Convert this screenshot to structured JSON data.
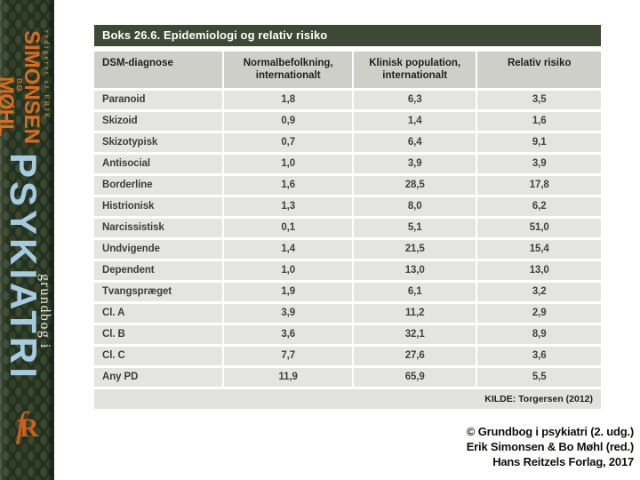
{
  "spine": {
    "edited_line": "redigeret af ERIK",
    "author1": "SIMONSEN",
    "author2_prefix": "BO",
    "author2": "MØHL",
    "series_label": "grundbog i",
    "book_title": "PSYKIATRI",
    "logo_f": "f",
    "logo_r": "R",
    "colors": {
      "spine_green": "#243120",
      "accent_orange": "#d96c1e",
      "title_blue": "#a6cbe0"
    }
  },
  "box": {
    "title": "Boks 26.6. Epidemiologi og relativ risiko",
    "columns": [
      "DSM-diagnose",
      "Normalbefolkning, internationalt",
      "Klinisk population, internationalt",
      "Relativ risiko"
    ],
    "rows": [
      [
        "Paranoid",
        "1,8",
        "6,3",
        "3,5"
      ],
      [
        "Skizoid",
        "0,9",
        "1,4",
        "1,6"
      ],
      [
        "Skizotypisk",
        "0,7",
        "6,4",
        "9,1"
      ],
      [
        "Antisocial",
        "1,0",
        "3,9",
        "3,9"
      ],
      [
        "Borderline",
        "1,6",
        "28,5",
        "17,8"
      ],
      [
        "Histrionisk",
        "1,3",
        "8,0",
        "6,2"
      ],
      [
        "Narcissistisk",
        "0,1",
        "5,1",
        "51,0"
      ],
      [
        "Undvigende",
        "1,4",
        "21,5",
        "15,4"
      ],
      [
        "Dependent",
        "1,0",
        "13,0",
        "13,0"
      ],
      [
        "Tvangspræget",
        "1,9",
        "6,1",
        "3,2"
      ],
      [
        "Cl. A",
        "3,9",
        "11,2",
        "2,9"
      ],
      [
        "Cl. B",
        "3,6",
        "32,1",
        "8,9"
      ],
      [
        "Cl. C",
        "7,7",
        "27,6",
        "3,6"
      ],
      [
        "Any PD",
        "11,9",
        "65,9",
        "5,5"
      ]
    ],
    "source": "KILDE: Torgersen (2012)",
    "colors": {
      "titlebar_green": "#3d4935",
      "header_grey": "#cfcfc9",
      "row_grey": "#e4e4e1"
    }
  },
  "credit": {
    "line1": "© Grundbog i psykiatri (2. udg.)",
    "line2": "Erik Simonsen & Bo Møhl (red.)",
    "line3": "Hans Reitzels Forlag, 2017"
  },
  "chart_data": {
    "type": "table",
    "title": "Boks 26.6. Epidemiologi og relativ risiko",
    "columns": [
      "DSM-diagnose",
      "Normalbefolkning, internationalt",
      "Klinisk population, internationalt",
      "Relativ risiko"
    ],
    "categories": [
      "Paranoid",
      "Skizoid",
      "Skizotypisk",
      "Antisocial",
      "Borderline",
      "Histrionisk",
      "Narcissistisk",
      "Undvigende",
      "Dependent",
      "Tvangspræget",
      "Cl. A",
      "Cl. B",
      "Cl. C",
      "Any PD"
    ],
    "series": [
      {
        "name": "Normalbefolkning, internationalt",
        "values": [
          1.8,
          0.9,
          0.7,
          1.0,
          1.6,
          1.3,
          0.1,
          1.4,
          1.0,
          1.9,
          3.9,
          3.6,
          7.7,
          11.9
        ]
      },
      {
        "name": "Klinisk population, internationalt",
        "values": [
          6.3,
          1.4,
          6.4,
          3.9,
          28.5,
          8.0,
          5.1,
          21.5,
          13.0,
          6.1,
          11.2,
          32.1,
          27.6,
          65.9
        ]
      },
      {
        "name": "Relativ risiko",
        "values": [
          3.5,
          1.6,
          9.1,
          3.9,
          17.8,
          6.2,
          51.0,
          15.4,
          13.0,
          3.2,
          2.9,
          8.9,
          3.6,
          5.5
        ]
      }
    ],
    "source": "KILDE: Torgersen (2012)"
  }
}
